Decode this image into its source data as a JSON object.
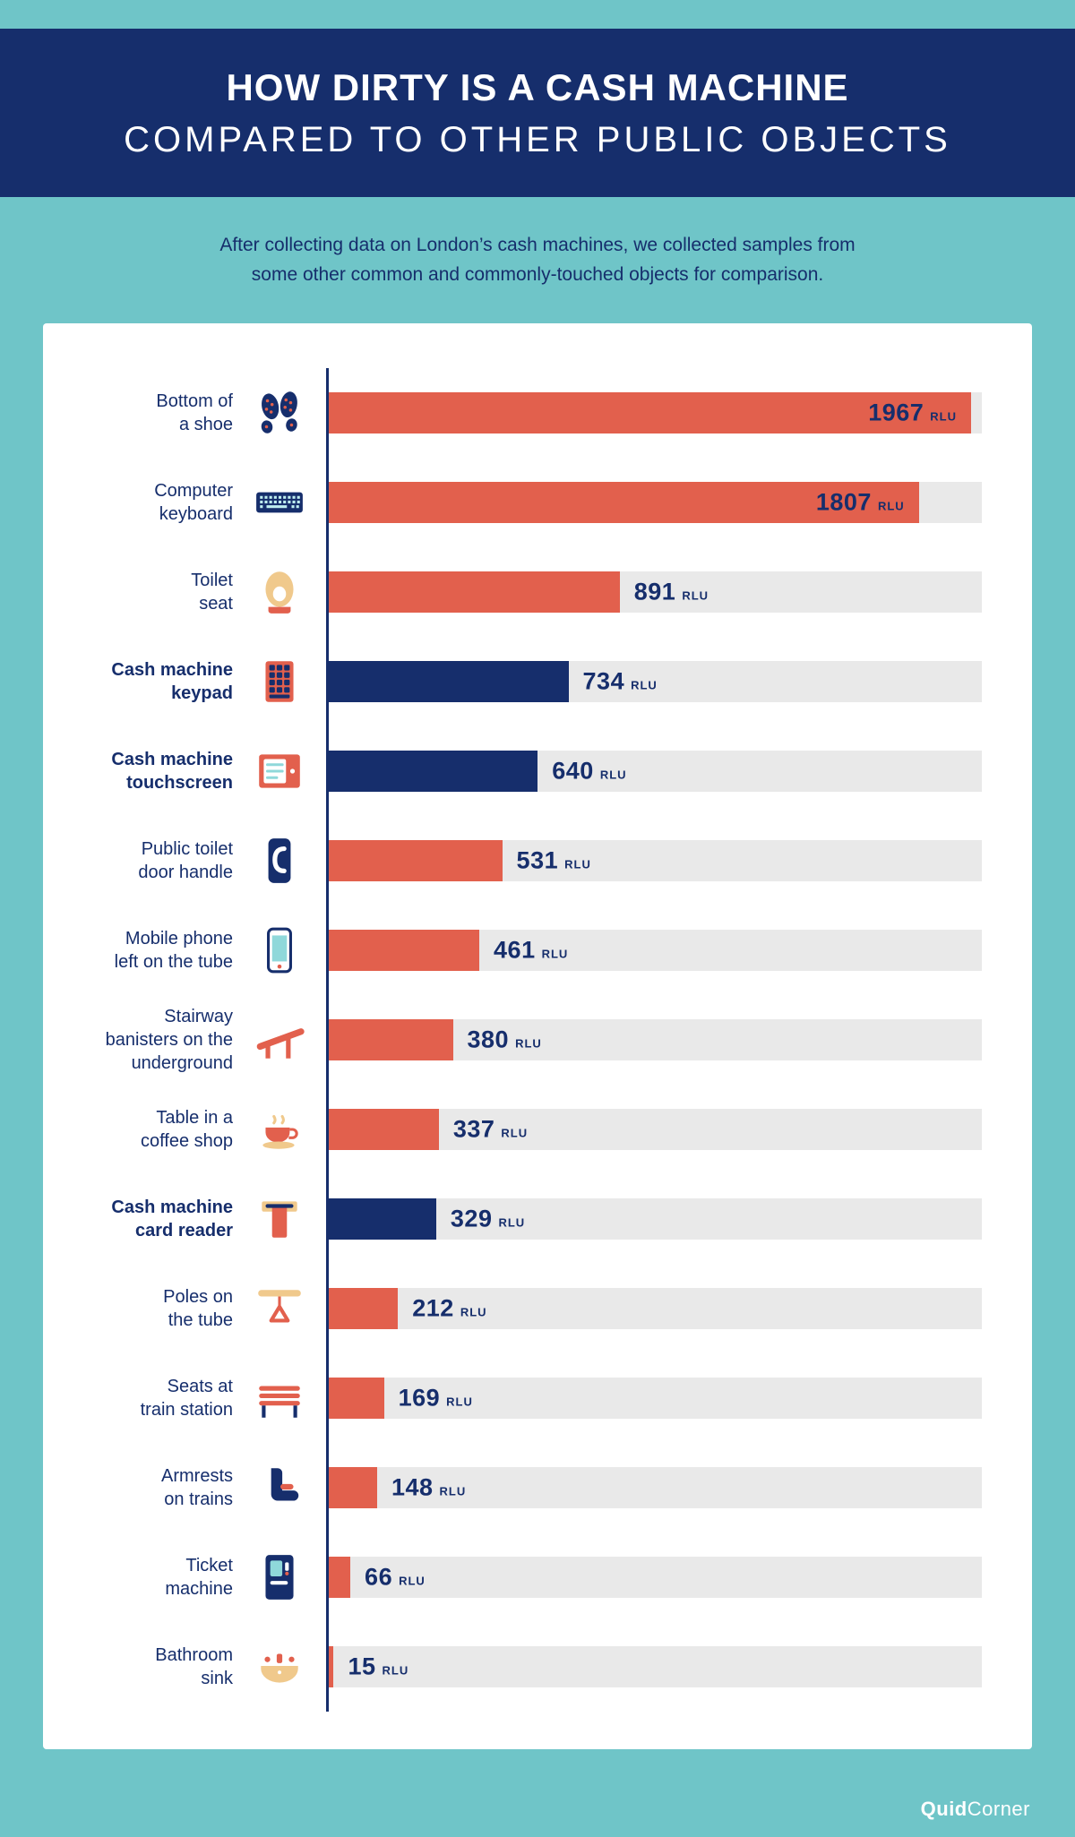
{
  "header": {
    "title_line1": "HOW DIRTY IS A CASH MACHINE",
    "title_line2": "COMPARED TO OTHER PUBLIC OBJECTS",
    "background": "#162e6c"
  },
  "subtitle": {
    "text": "After collecting data on London’s cash machines, we collected samples from\nsome other common and commonly-touched objects for comparison."
  },
  "chart_data": {
    "type": "bar",
    "orientation": "horizontal",
    "title": "How dirty is a cash machine compared to other public objects",
    "unit": "RLU",
    "max": 2000,
    "xlim": [
      0,
      2000
    ],
    "colors": {
      "default_bar": "#e2604d",
      "highlight_bar": "#162e6c",
      "track": "#e9e9e9",
      "text": "#162e6c",
      "background": "#6fc5c8"
    },
    "items": [
      {
        "label": "Bottom of\na shoe",
        "value": 1967,
        "highlight": false,
        "icon": "shoe-icon"
      },
      {
        "label": "Computer\nkeyboard",
        "value": 1807,
        "highlight": false,
        "icon": "keyboard-icon"
      },
      {
        "label": "Toilet\nseat",
        "value": 891,
        "highlight": false,
        "icon": "toilet-seat-icon"
      },
      {
        "label": "Cash machine\nkeypad",
        "value": 734,
        "highlight": true,
        "icon": "keypad-icon"
      },
      {
        "label": "Cash machine\ntouchscreen",
        "value": 640,
        "highlight": true,
        "icon": "touchscreen-icon"
      },
      {
        "label": "Public toilet\ndoor handle",
        "value": 531,
        "highlight": false,
        "icon": "door-handle-icon"
      },
      {
        "label": "Mobile phone\nleft on the tube",
        "value": 461,
        "highlight": false,
        "icon": "mobile-phone-icon"
      },
      {
        "label": "Stairway\nbanisters on the\nunderground",
        "value": 380,
        "highlight": false,
        "icon": "banister-icon"
      },
      {
        "label": "Table in a\ncoffee shop",
        "value": 337,
        "highlight": false,
        "icon": "coffee-cup-icon"
      },
      {
        "label": "Cash machine\ncard reader",
        "value": 329,
        "highlight": true,
        "icon": "card-reader-icon"
      },
      {
        "label": "Poles on\nthe tube",
        "value": 212,
        "highlight": false,
        "icon": "tube-pole-icon"
      },
      {
        "label": "Seats at\ntrain station",
        "value": 169,
        "highlight": false,
        "icon": "bench-icon"
      },
      {
        "label": "Armrests\non trains",
        "value": 148,
        "highlight": false,
        "icon": "armrest-icon"
      },
      {
        "label": "Ticket\nmachine",
        "value": 66,
        "highlight": false,
        "icon": "ticket-machine-icon"
      },
      {
        "label": "Bathroom\nsink",
        "value": 15,
        "highlight": false,
        "icon": "sink-icon"
      }
    ]
  },
  "footer": {
    "logo_bold": "Quid",
    "logo_light": "Corner"
  }
}
